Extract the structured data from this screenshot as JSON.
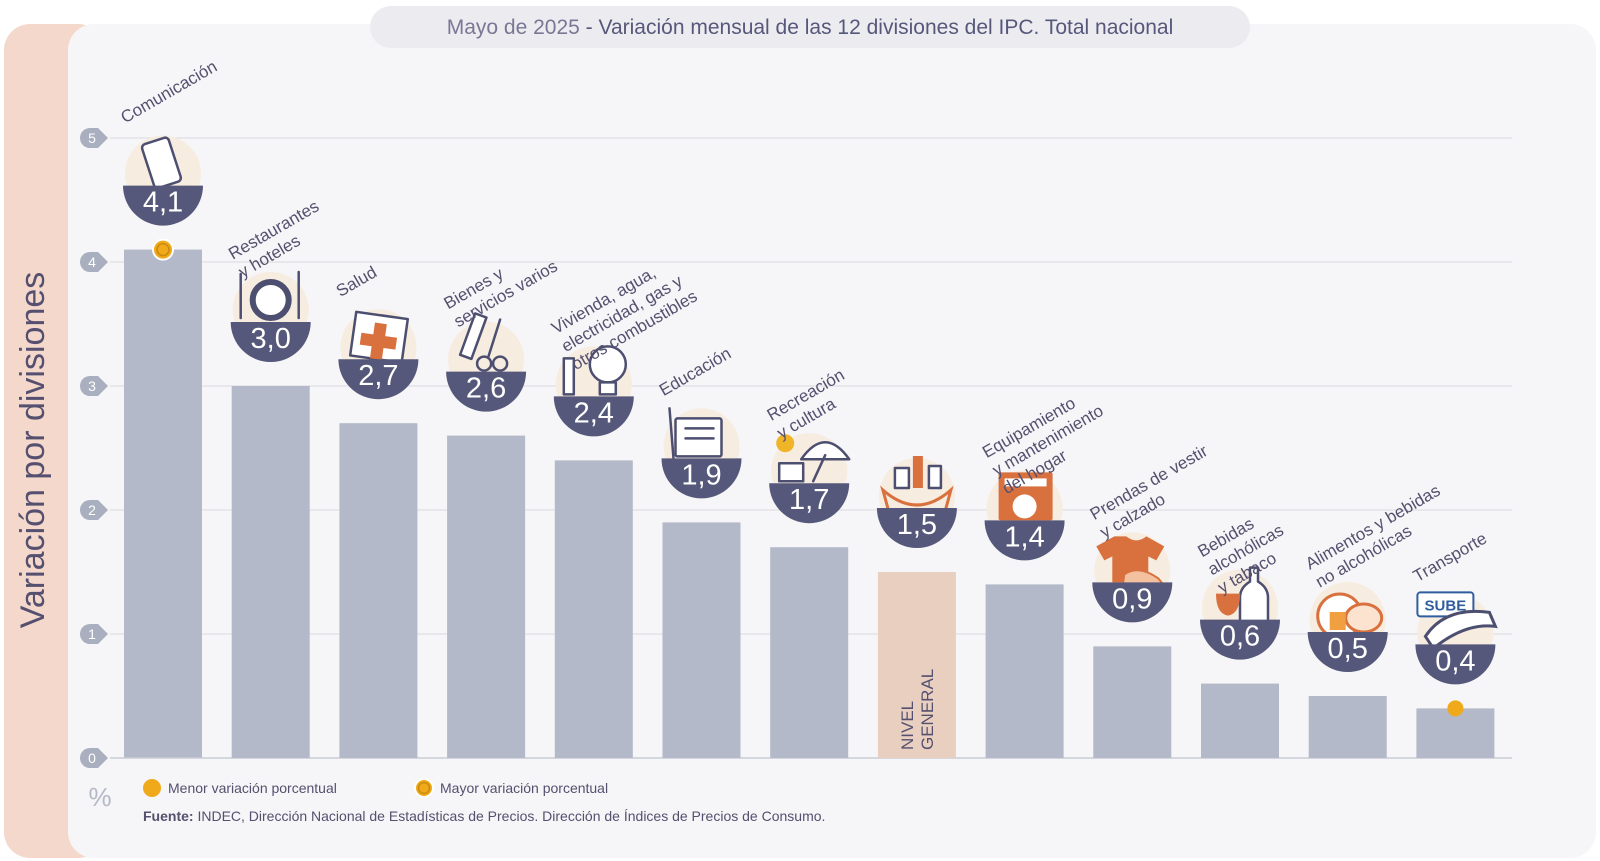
{
  "title": {
    "date": "Mayo de 2025",
    "separator": " - ",
    "text": "Variación mensual de las 12 divisiones del IPC. Total nacional"
  },
  "colors": {
    "bar": "#b3b9c8",
    "highlight_bar": "#e9cfc0",
    "badge": "#55587a",
    "icon_halo": "#f7ece0",
    "grid": "#d9d9e0",
    "marker": "#f0a91a",
    "text": "#55506f",
    "left_band": "#f4d8cb",
    "panel": "#f6f5f7"
  },
  "chart_data": {
    "type": "bar",
    "title": "Variación mensual de las 12 divisiones del IPC. Total nacional",
    "ylabel": "Variación por divisiones",
    "unit": "%",
    "ylim": [
      0,
      5
    ],
    "yticks": [
      "0",
      "1",
      "2",
      "3",
      "4",
      "5"
    ],
    "grid": true,
    "categories": [
      [
        "Comunicación"
      ],
      [
        "Restaurantes",
        "y hoteles"
      ],
      [
        "Salud"
      ],
      [
        "Bienes y",
        "servicios varios"
      ],
      [
        "Vivienda, agua,",
        "electricidad, gas y",
        "otros combustibles"
      ],
      [
        "Educación"
      ],
      [
        "Recreación",
        "y cultura"
      ],
      [
        "NIVEL",
        "GENERAL"
      ],
      [
        "Equipamiento",
        "y mantenimiento",
        "del hogar"
      ],
      [
        "Prendas de vestir",
        "y calzado"
      ],
      [
        "Bebidas",
        "alcohólicas",
        "y tabaco"
      ],
      [
        "Alimentos y bebidas",
        "no alcohólicas"
      ],
      [
        "Transporte"
      ]
    ],
    "values": [
      4.1,
      3.0,
      2.7,
      2.6,
      2.4,
      1.9,
      1.7,
      1.5,
      1.4,
      0.9,
      0.6,
      0.5,
      0.4
    ],
    "value_labels": [
      "4,1",
      "3,0",
      "2,7",
      "2,6",
      "2,4",
      "1,9",
      "1,7",
      "1,5",
      "1,4",
      "0,9",
      "0,6",
      "0,5",
      "0,4"
    ],
    "icons": [
      "phone-icon",
      "restaurant-icon",
      "health-icon",
      "services-icon",
      "housing-icon",
      "education-icon",
      "recreation-icon",
      "shopping-bag-icon",
      "washing-machine-icon",
      "clothing-icon",
      "beverages-icon",
      "food-icon",
      "transport-icon"
    ],
    "highlight_index": 7,
    "max_index": 0,
    "min_index": 12,
    "legend": {
      "position": "bottom-left",
      "min_label": "Menor variación porcentual",
      "max_label": "Mayor variación porcentual"
    }
  },
  "source": {
    "label": "Fuente:",
    "text": " INDEC, Dirección Nacional de Estadísticas de Precios. Dirección de Índices de Precios de Consumo."
  }
}
